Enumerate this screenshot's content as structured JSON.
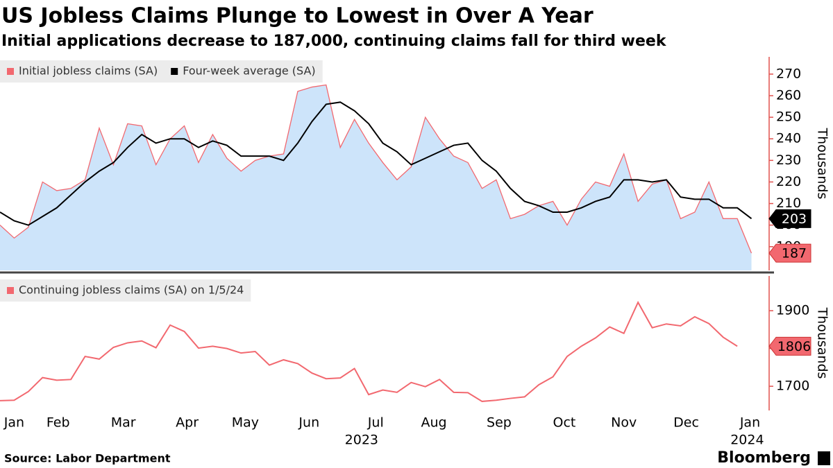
{
  "title": "US Jobless Claims Plunge to Lowest in Over A Year",
  "subtitle": "Initial applications decrease to 187,000, continuing claims fall for third week",
  "source": "Source: Labor Department",
  "brand": "Bloomberg",
  "chart_data": [
    {
      "type": "line",
      "y_label": "Thousands",
      "xlim": [
        0,
        54.1
      ],
      "ylim": [
        179,
        278
      ],
      "yticks": [
        190,
        200,
        210,
        220,
        230,
        240,
        250,
        260,
        270
      ],
      "series": [
        {
          "name": "Initial jobless claims (SA)",
          "color": "#f2686f",
          "fill_color": "#cde4fa",
          "values": [
            200,
            194,
            199,
            220,
            216,
            217,
            221,
            245,
            228,
            247,
            246,
            228,
            240,
            246,
            229,
            242,
            231,
            225,
            230,
            232,
            233,
            262,
            264,
            265,
            236,
            249,
            238,
            229,
            221,
            227,
            250,
            240,
            232,
            229,
            217,
            221,
            203,
            205,
            209,
            211,
            200,
            212,
            220,
            218,
            233,
            211,
            219,
            221,
            203,
            206,
            220,
            203,
            203,
            187
          ]
        },
        {
          "name": "Four-week average (SA)",
          "color": "#000000",
          "values": [
            206,
            202,
            200,
            204,
            208,
            214,
            220,
            225,
            229,
            236,
            242,
            238,
            240,
            240,
            236,
            239,
            237,
            232,
            232,
            232,
            230,
            238,
            248,
            256,
            257,
            253,
            247,
            238,
            234,
            228,
            231,
            234,
            237,
            238,
            230,
            225,
            217,
            211,
            209,
            206,
            206,
            208,
            211,
            213,
            221,
            221,
            220,
            221,
            213,
            212,
            212,
            208,
            208,
            203
          ]
        }
      ]
    },
    {
      "type": "line",
      "y_label": "Thousands",
      "xlim": [
        0,
        54.1
      ],
      "ylim": [
        1636,
        1992
      ],
      "yticks": [
        1700,
        1800,
        1900
      ],
      "xticks": [
        {
          "value": 1.0,
          "label": "Jan"
        },
        {
          "value": 4.1,
          "label": "Feb"
        },
        {
          "value": 8.7,
          "label": "Mar"
        },
        {
          "value": 13.2,
          "label": "Apr"
        },
        {
          "value": 17.3,
          "label": "May"
        },
        {
          "value": 21.8,
          "label": "Jun"
        },
        {
          "value": 26.5,
          "label": "Jul"
        },
        {
          "value": 30.6,
          "label": "Aug"
        },
        {
          "value": 35.2,
          "label": "Sep"
        },
        {
          "value": 39.8,
          "label": "Oct"
        },
        {
          "value": 44.0,
          "label": "Nov"
        },
        {
          "value": 48.4,
          "label": "Dec"
        },
        {
          "value": 52.9,
          "label": "Jan"
        }
      ],
      "year_ticks": [
        {
          "value": 25.5,
          "label": "2023"
        },
        {
          "value": 52.7,
          "label": "2024"
        }
      ],
      "series": [
        {
          "name": "Continuing jobless claims (SA) on 1/5/24",
          "color": "#f2686f",
          "values": [
            1662,
            1663,
            1686,
            1723,
            1716,
            1718,
            1779,
            1772,
            1803,
            1815,
            1820,
            1802,
            1862,
            1845,
            1801,
            1806,
            1800,
            1788,
            1792,
            1756,
            1770,
            1760,
            1735,
            1720,
            1722,
            1747,
            1678,
            1690,
            1684,
            1710,
            1699,
            1718,
            1684,
            1683,
            1660,
            1663,
            1668,
            1672,
            1704,
            1725,
            1779,
            1806,
            1828,
            1857,
            1840,
            1922,
            1855,
            1865,
            1860,
            1884,
            1866,
            1830,
            1806,
            null
          ]
        }
      ]
    }
  ]
}
